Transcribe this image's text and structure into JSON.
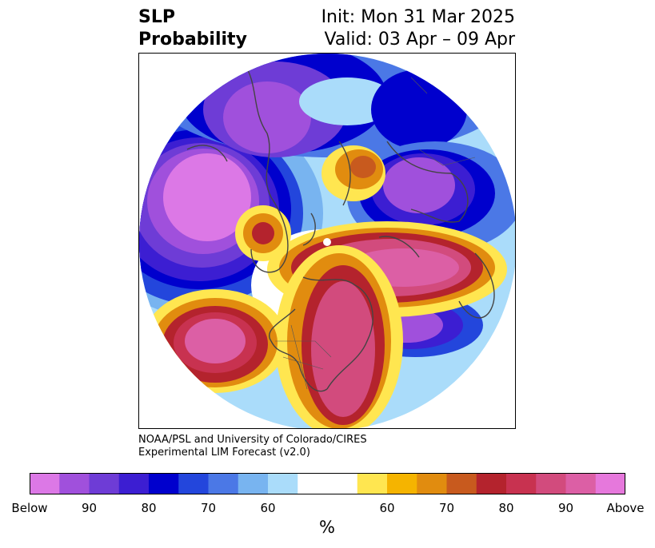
{
  "header": {
    "title_line1": "SLP",
    "title_line2": "Probability",
    "init": "Init: Mon 31 Mar 2025",
    "valid": "Valid: 03 Apr – 09 Apr"
  },
  "credit": {
    "line1": "NOAA/PSL and University of Colorado/CIRES",
    "line2": "Experimental LIM Forecast (v2.0)"
  },
  "colorbar": {
    "colors": [
      "#dc78e6",
      "#a050dc",
      "#6e3cd6",
      "#3c1ed2",
      "#0000cd",
      "#2346dc",
      "#4b78e6",
      "#78b4f0",
      "#aadcfa",
      "#ffffff",
      "#ffffff",
      "#ffe650",
      "#f5b400",
      "#e18c0f",
      "#c85a1e",
      "#b4232d",
      "#c83250",
      "#d24b7d",
      "#dc5fa5",
      "#e678dc"
    ],
    "ticks": [
      "Below",
      "90",
      "80",
      "70",
      "60",
      "60",
      "70",
      "80",
      "90",
      "Above"
    ],
    "unit": "%"
  },
  "map": {
    "colors": {
      "below_strong": "#dc78e6",
      "below_90": "#a050dc",
      "below_85": "#6e3cd6",
      "below_80": "#3c1ed2",
      "below_75": "#0000cd",
      "below_70": "#2346dc",
      "below_65": "#4b78e6",
      "below_60": "#78b4f0",
      "below_55": "#aadcfa",
      "above_55": "#ffe650",
      "above_60": "#f5b400",
      "above_65": "#e18c0f",
      "above_70": "#c85a1e",
      "above_75": "#b4232d",
      "above_80": "#c83250",
      "above_85": "#d24b7d",
      "above_90": "#dc5fa5",
      "coast": "#444444"
    }
  }
}
